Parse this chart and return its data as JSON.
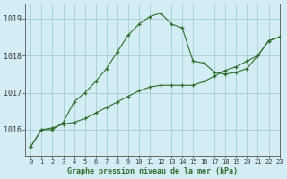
{
  "title": "Graphe pression niveau de la mer (hPa)",
  "bg_color": "#d4edf4",
  "grid_color": "#a8ccd4",
  "line_color": "#2d6e2d",
  "xlim": [
    -0.5,
    23
  ],
  "ylim": [
    1015.3,
    1019.4
  ],
  "yticks": [
    1016,
    1017,
    1018,
    1019
  ],
  "xticks": [
    0,
    1,
    2,
    3,
    4,
    5,
    6,
    7,
    8,
    9,
    10,
    11,
    12,
    13,
    14,
    15,
    16,
    17,
    18,
    19,
    20,
    21,
    22,
    23
  ],
  "series1_x": [
    0,
    1,
    2,
    3,
    4,
    5,
    6,
    7,
    8,
    9,
    10,
    11,
    12,
    13,
    14,
    15,
    16,
    17,
    18,
    19,
    20,
    21,
    22,
    23
  ],
  "series1_y": [
    1015.55,
    1016.0,
    1016.0,
    1016.2,
    1016.75,
    1017.0,
    1017.3,
    1017.65,
    1018.1,
    1018.55,
    1018.85,
    1019.05,
    1019.15,
    1018.85,
    1018.75,
    1017.85,
    1017.8,
    1017.55,
    1017.5,
    1017.55,
    1017.65,
    1018.0,
    1018.4,
    1018.5
  ],
  "series2_x": [
    0,
    1,
    2,
    3,
    4,
    5,
    6,
    7,
    8,
    9,
    10,
    11,
    12,
    13,
    14,
    15,
    16,
    17,
    18,
    19,
    20,
    21,
    22,
    23
  ],
  "series2_y": [
    1015.55,
    1016.0,
    1016.05,
    1016.15,
    1016.2,
    1016.3,
    1016.45,
    1016.6,
    1016.75,
    1016.9,
    1017.05,
    1017.15,
    1017.2,
    1017.2,
    1017.2,
    1017.2,
    1017.3,
    1017.45,
    1017.6,
    1017.7,
    1017.85,
    1018.0,
    1018.4,
    1018.5
  ],
  "title_fontsize": 6,
  "tick_fontsize": 5,
  "label_color": "#2d6e2d"
}
